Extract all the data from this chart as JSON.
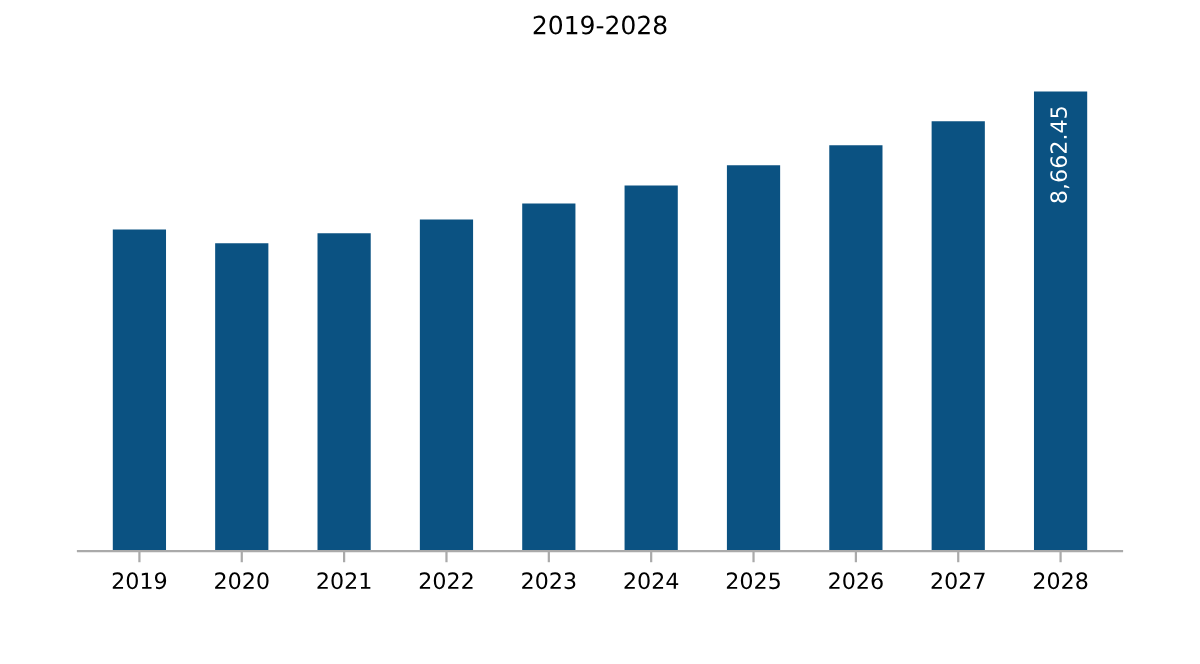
{
  "chart_data": {
    "type": "bar",
    "title": "2019-2028",
    "categories": [
      "2019",
      "2020",
      "2021",
      "2022",
      "2023",
      "2024",
      "2025",
      "2026",
      "2027",
      "2028"
    ],
    "values": [
      6060,
      5800,
      5990,
      6250,
      6550,
      6890,
      7270,
      7650,
      8100,
      8662.45
    ],
    "value_labels": [
      null,
      null,
      null,
      null,
      null,
      null,
      null,
      null,
      null,
      "8,662.45"
    ],
    "color": "#0b5282",
    "grid": false,
    "legend": false
  }
}
